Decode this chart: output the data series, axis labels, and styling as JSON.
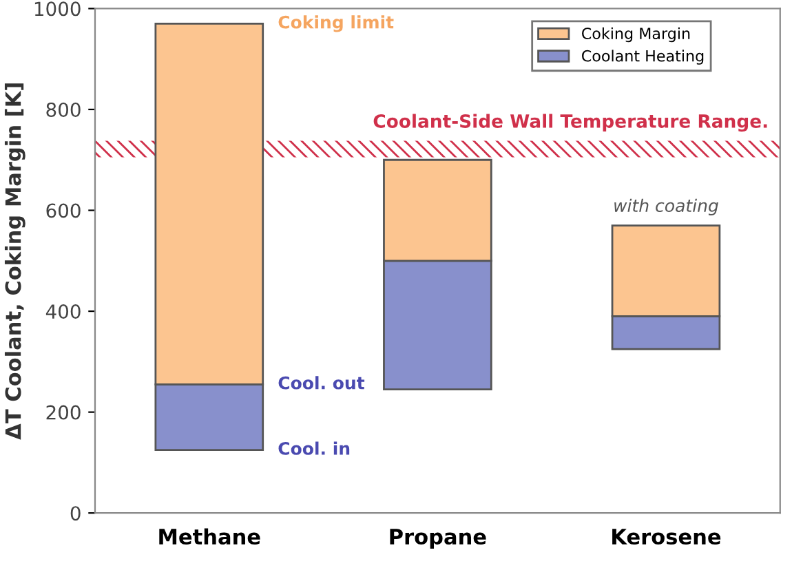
{
  "chart_data": {
    "type": "bar",
    "ylabel": "ΔT Coolant, Coking Margin [K]",
    "categories": [
      "Methane",
      "Propane",
      "Kerosene"
    ],
    "series": [
      {
        "name": "Coolant Heating",
        "color": "#8890cc",
        "base": [
          125,
          245,
          325
        ],
        "values": [
          130,
          255,
          65
        ]
      },
      {
        "name": "Coking Margin",
        "color": "#fcc590",
        "base": [
          255,
          500,
          390
        ],
        "values": [
          715,
          200,
          180
        ]
      }
    ],
    "ylim": [
      0,
      1000
    ],
    "yticks": [
      0,
      200,
      400,
      600,
      800,
      1000
    ],
    "grid": false,
    "legend": "top right",
    "bands": [
      {
        "axis": "y",
        "from": 705,
        "to": 738,
        "label": "Coolant-Side Wall Temperature Range.",
        "color": "#d0304a"
      }
    ],
    "annotations": [
      "Coking limit",
      "Cool. out",
      "Cool. in",
      "with coating"
    ]
  }
}
